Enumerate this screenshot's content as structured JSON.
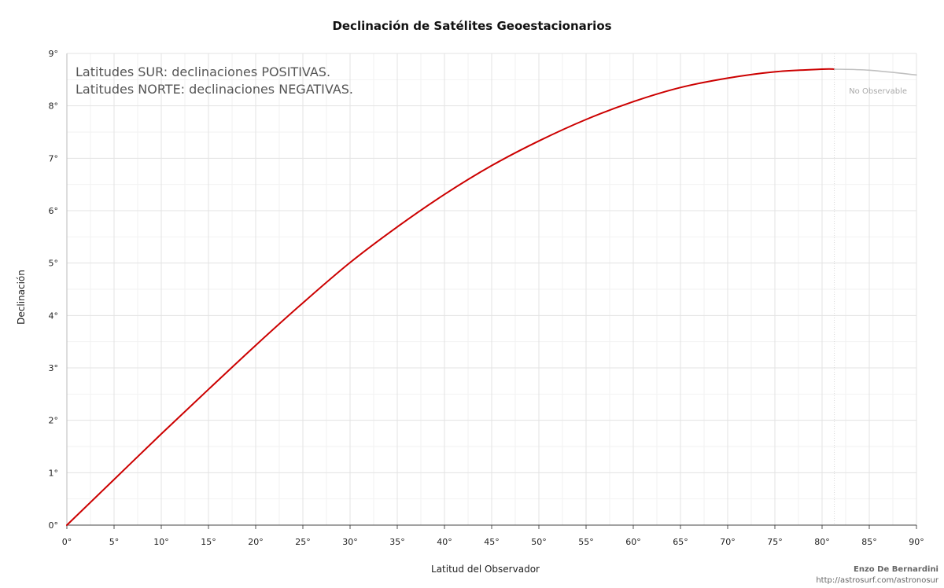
{
  "chart_data": {
    "type": "line",
    "title": "Declinación de Satélites Geoestacionarios",
    "xlabel": "Latitud del Observador",
    "ylabel": "Declinación",
    "xlim": [
      0,
      90
    ],
    "ylim": [
      0,
      9
    ],
    "x_ticks": [
      "0°",
      "5°",
      "10°",
      "15°",
      "20°",
      "25°",
      "30°",
      "35°",
      "40°",
      "45°",
      "50°",
      "55°",
      "60°",
      "65°",
      "70°",
      "75°",
      "80°",
      "85°",
      "90°"
    ],
    "y_ticks": [
      "0°",
      "1°",
      "2°",
      "3°",
      "4°",
      "5°",
      "6°",
      "7°",
      "8°",
      "9°"
    ],
    "grid": true,
    "annotations": [
      "Latitudes SUR: declinaciones POSITIVAS.",
      "Latitudes NORTE: declinaciones NEGATIVAS."
    ],
    "region_label": "No Observable",
    "observable_limit_x": 81.3,
    "series": [
      {
        "segment": "observable",
        "color": "#cc0000",
        "x": [
          0,
          5,
          10,
          15,
          20,
          25,
          30,
          35,
          40,
          45,
          50,
          55,
          60,
          65,
          70,
          75,
          80,
          81.3
        ],
        "y": [
          0,
          0.87,
          1.74,
          2.59,
          3.43,
          4.24,
          5.01,
          5.69,
          6.31,
          6.86,
          7.33,
          7.74,
          8.08,
          8.35,
          8.53,
          8.65,
          8.7,
          8.7
        ]
      },
      {
        "segment": "not-observable",
        "color": "#c0c0c0",
        "x": [
          81.3,
          85,
          90
        ],
        "y": [
          8.7,
          8.68,
          8.59
        ]
      }
    ]
  },
  "credit": {
    "name": "Enzo De Bernardini",
    "url": "http://astrosurf.com/astronosur"
  }
}
